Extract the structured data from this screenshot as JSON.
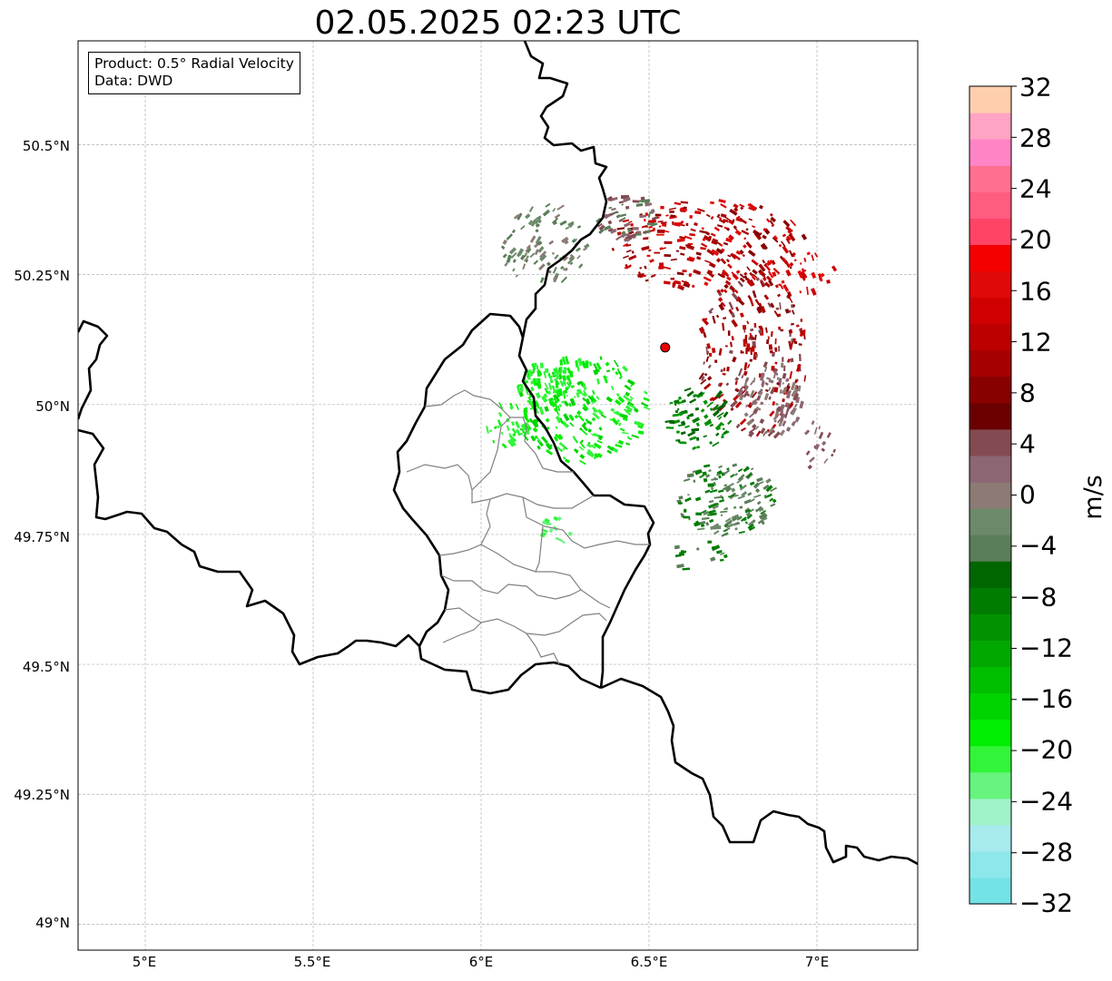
{
  "title": "02.05.2025 02:23 UTC",
  "infobox": {
    "product": "Product: 0.5° Radial Velocity",
    "data": "Data: DWD"
  },
  "axes": {
    "lat_ticks": [
      "50.5°N",
      "50.25°N",
      "50°N",
      "49.75°N",
      "49.5°N",
      "49.25°N",
      "49°N"
    ],
    "lon_ticks": [
      "5°E",
      "5.5°E",
      "6°E",
      "6.5°E",
      "7°E"
    ],
    "lon_range": [
      4.8,
      7.3
    ],
    "lat_range": [
      48.95,
      50.7
    ]
  },
  "colorbar": {
    "label": "m/s",
    "ticks": [
      "32",
      "28",
      "24",
      "20",
      "16",
      "12",
      "8",
      "4",
      "0",
      "−4",
      "−8",
      "−12",
      "−16",
      "−20",
      "−24",
      "−28",
      "−32"
    ],
    "range": [
      -32,
      32
    ],
    "colors_bottom_to_top": [
      "#74e3e6",
      "#8ce8ea",
      "#a8ebee",
      "#a0f2c8",
      "#66f47e",
      "#32f53a",
      "#00ee00",
      "#00d400",
      "#00be00",
      "#00a800",
      "#009200",
      "#007c00",
      "#006600",
      "#5a7e58",
      "#6c8a6a",
      "#8c7a74",
      "#8c6672",
      "#844a52",
      "#6a0000",
      "#880000",
      "#a40000",
      "#bc0000",
      "#d00000",
      "#e00808",
      "#f40000",
      "#ff4466",
      "#ff5c80",
      "#ff7090",
      "#ff84c6",
      "#ffa4c4",
      "#ffcfad"
    ]
  },
  "radar_site": {
    "lon": 6.548,
    "lat": 50.11,
    "color": "#ee0000"
  },
  "colors": {
    "border": "#000000",
    "region_border": "#808080",
    "grid": "#b0b0b0"
  }
}
